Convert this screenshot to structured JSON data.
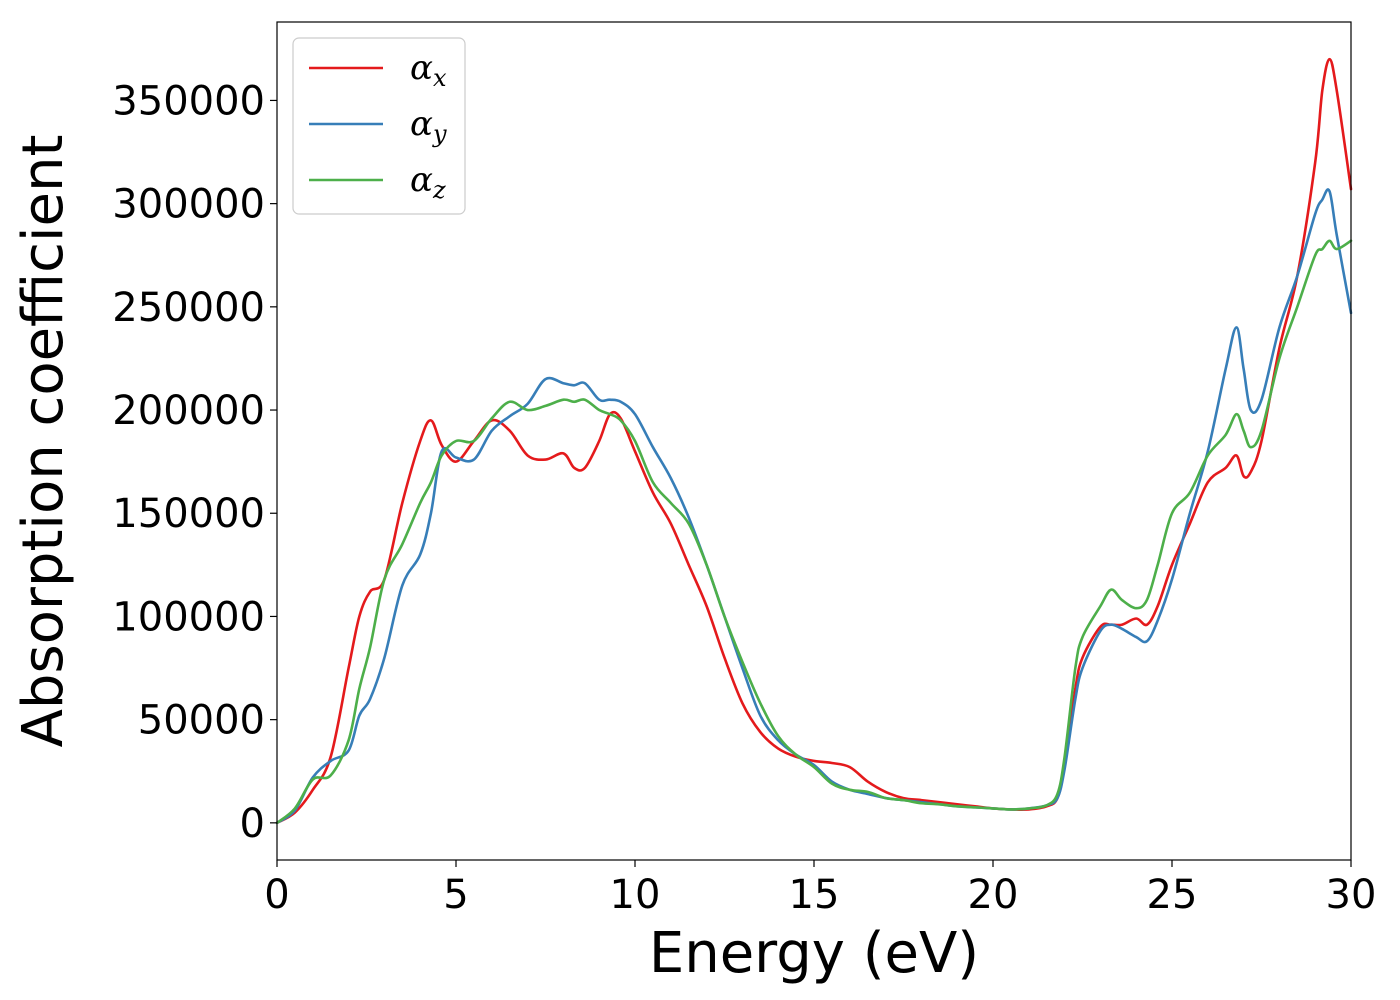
{
  "chart_data": {
    "type": "line",
    "xlabel": "Energy (eV)",
    "ylabel": "Absorption coefficient",
    "xlim": [
      0,
      30
    ],
    "ylim": [
      -18000,
      388000
    ],
    "xticks": [
      0,
      5,
      10,
      15,
      20,
      25,
      30
    ],
    "yticks": [
      0,
      50000,
      100000,
      150000,
      200000,
      250000,
      300000,
      350000
    ],
    "grid": false,
    "legend_position": "top-left",
    "series": [
      {
        "name": "αx",
        "symbol": "α",
        "subscript": "x",
        "color": "#e41a1c",
        "x": [
          0,
          0.5,
          1,
          1.5,
          2,
          2.3,
          2.6,
          3,
          3.5,
          4,
          4.3,
          4.6,
          5,
          5.5,
          6,
          6.5,
          7,
          7.5,
          8,
          8.3,
          8.6,
          9,
          9.3,
          9.6,
          10,
          10.5,
          11,
          11.5,
          12,
          12.5,
          13,
          13.5,
          14,
          14.5,
          15,
          15.5,
          16,
          16.5,
          17,
          17.5,
          18,
          18.5,
          19,
          19.5,
          20,
          20.5,
          21,
          21.5,
          21.8,
          22,
          22.3,
          22.5,
          23,
          23.3,
          23.6,
          24,
          24.3,
          24.6,
          25,
          25.5,
          26,
          26.5,
          26.8,
          27,
          27.2,
          27.5,
          28,
          28.5,
          29,
          29.2,
          29.4,
          29.6,
          30
        ],
        "y": [
          0,
          5000,
          16000,
          32000,
          75000,
          100000,
          112000,
          118000,
          155000,
          185000,
          195000,
          183000,
          175000,
          185000,
          195000,
          190000,
          178000,
          176000,
          179000,
          172000,
          172000,
          185000,
          198000,
          196000,
          180000,
          160000,
          145000,
          125000,
          105000,
          80000,
          58000,
          44000,
          36000,
          32000,
          30000,
          29000,
          27000,
          20000,
          15000,
          12000,
          11000,
          10000,
          9000,
          8000,
          7000,
          6500,
          6500,
          8000,
          12000,
          28000,
          65000,
          80000,
          95000,
          96000,
          96000,
          99000,
          96000,
          105000,
          125000,
          145000,
          165000,
          172000,
          178000,
          168000,
          170000,
          185000,
          230000,
          265000,
          320000,
          355000,
          370000,
          355000,
          307000
        ]
      },
      {
        "name": "αy",
        "symbol": "α",
        "subscript": "y",
        "color": "#377eb8",
        "x": [
          0,
          0.5,
          1,
          1.5,
          2,
          2.3,
          2.6,
          3,
          3.5,
          4,
          4.3,
          4.6,
          5,
          5.5,
          6,
          6.5,
          7,
          7.5,
          8,
          8.3,
          8.6,
          9,
          9.3,
          9.6,
          10,
          10.5,
          11,
          11.5,
          12,
          12.5,
          13,
          13.5,
          14,
          14.5,
          15,
          15.5,
          16,
          16.5,
          17,
          17.5,
          18,
          18.5,
          19,
          19.5,
          20,
          20.5,
          21,
          21.5,
          21.8,
          22,
          22.3,
          22.5,
          23,
          23.3,
          23.6,
          24,
          24.3,
          24.6,
          25,
          25.5,
          26,
          26.5,
          26.8,
          27,
          27.2,
          27.5,
          28,
          28.5,
          29,
          29.2,
          29.4,
          29.6,
          30
        ],
        "y": [
          0,
          6000,
          22000,
          30000,
          35000,
          52000,
          60000,
          80000,
          115000,
          130000,
          150000,
          180000,
          177000,
          176000,
          190000,
          197000,
          203000,
          215000,
          213000,
          212000,
          213000,
          205000,
          205000,
          204000,
          198000,
          182000,
          167000,
          148000,
          125000,
          100000,
          75000,
          52000,
          40000,
          33000,
          28000,
          20000,
          16000,
          14000,
          12000,
          11000,
          10000,
          9000,
          8000,
          7500,
          7000,
          6500,
          7000,
          8500,
          12000,
          26000,
          60000,
          75000,
          93000,
          96000,
          94000,
          90000,
          88000,
          98000,
          118000,
          150000,
          180000,
          220000,
          240000,
          220000,
          200000,
          205000,
          240000,
          265000,
          295000,
          302000,
          306000,
          285000,
          247000
        ]
      },
      {
        "name": "αz",
        "symbol": "α",
        "subscript": "z",
        "color": "#4daf4a",
        "x": [
          0,
          0.5,
          1,
          1.5,
          2,
          2.3,
          2.6,
          3,
          3.5,
          4,
          4.3,
          4.6,
          5,
          5.5,
          6,
          6.5,
          7,
          7.5,
          8,
          8.3,
          8.6,
          9,
          9.3,
          9.6,
          10,
          10.5,
          11,
          11.5,
          12,
          12.5,
          13,
          13.5,
          14,
          14.5,
          15,
          15.5,
          16,
          16.5,
          17,
          17.5,
          18,
          18.5,
          19,
          19.5,
          20,
          20.5,
          21,
          21.5,
          21.8,
          22,
          22.3,
          22.5,
          23,
          23.3,
          23.6,
          24,
          24.3,
          24.6,
          25,
          25.5,
          26,
          26.5,
          26.8,
          27,
          27.2,
          27.5,
          28,
          28.5,
          29,
          29.2,
          29.4,
          29.6,
          30
        ],
        "y": [
          0,
          7000,
          21000,
          23000,
          40000,
          65000,
          85000,
          118000,
          135000,
          155000,
          165000,
          178000,
          185000,
          185000,
          196000,
          204000,
          200000,
          202000,
          205000,
          204000,
          205000,
          200000,
          198000,
          195000,
          185000,
          165000,
          155000,
          145000,
          125000,
          100000,
          78000,
          58000,
          42000,
          33000,
          27000,
          19000,
          16000,
          15000,
          12000,
          11000,
          9500,
          9000,
          8000,
          7500,
          7000,
          6500,
          7000,
          8500,
          14000,
          32000,
          75000,
          90000,
          105000,
          113000,
          108000,
          104000,
          108000,
          125000,
          150000,
          160000,
          178000,
          188000,
          198000,
          190000,
          182000,
          190000,
          225000,
          250000,
          275000,
          278000,
          282000,
          278000,
          282000
        ]
      }
    ]
  }
}
